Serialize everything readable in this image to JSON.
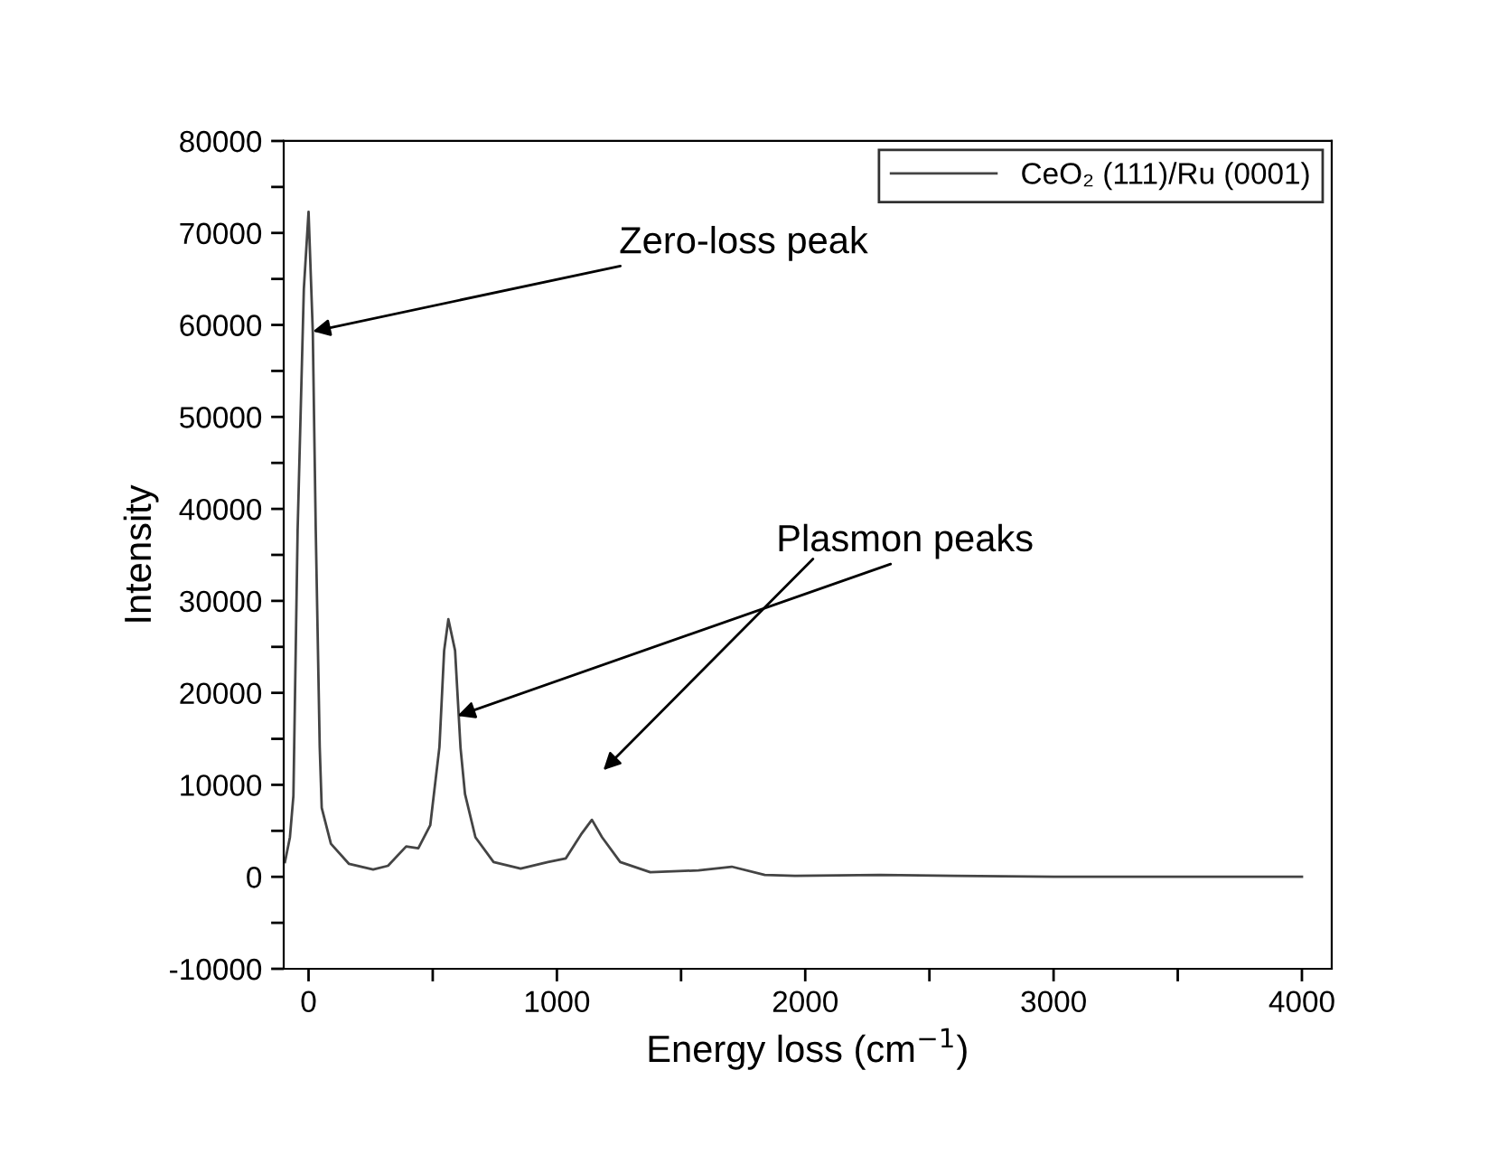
{
  "chart_data": {
    "type": "line",
    "xlabel": "Energy loss (cm$^{−1}$)",
    "ylabel": "Intensity",
    "series": [
      {
        "name": "CeO₂ (111)/Ru (0001)",
        "color": "#444444",
        "x": [
          -95,
          -75,
          -61,
          -44,
          -19,
          0,
          17,
          29,
          45,
          53,
          90,
          163,
          260,
          320,
          393,
          442,
          490,
          527,
          546,
          563,
          590,
          612,
          630,
          672,
          745,
          854,
          964,
          1036,
          1097,
          1141,
          1182,
          1255,
          1376,
          1570,
          1704,
          1837,
          1959,
          2300,
          2600,
          3000,
          4000
        ],
        "values": [
          1600,
          4300,
          8800,
          37700,
          63900,
          72300,
          59300,
          37700,
          14100,
          7500,
          3600,
          1400,
          800,
          1200,
          3300,
          3100,
          5600,
          14100,
          24600,
          28000,
          24600,
          14000,
          9000,
          4300,
          1600,
          900,
          1600,
          2000,
          4600,
          6200,
          4300,
          1600,
          500,
          700,
          1100,
          200,
          100,
          200,
          100,
          0,
          0
        ]
      }
    ],
    "xlim": [
      -100,
      4120
    ],
    "ylim": [
      -10000,
      80000
    ],
    "xticks": [
      0,
      {
        "value": 500,
        "label": null
      },
      1000,
      {
        "value": 1500,
        "label": null
      },
      2000,
      {
        "value": 2500,
        "label": null
      },
      3000,
      {
        "value": 3500,
        "label": null
      },
      4000
    ],
    "yticks": [
      -10000,
      {
        "value": -5000,
        "label": null
      },
      0,
      {
        "value": 5000,
        "label": null
      },
      10000,
      {
        "value": 15000,
        "label": null
      },
      20000,
      {
        "value": 25000,
        "label": null
      },
      30000,
      {
        "value": 35000,
        "label": null
      },
      40000,
      {
        "value": 45000,
        "label": null
      },
      50000,
      {
        "value": 55000,
        "label": null
      },
      60000,
      {
        "value": 65000,
        "label": null
      },
      70000,
      {
        "value": 75000,
        "label": null
      },
      80000
    ],
    "annotations": [
      {
        "text": "Zero-loss peak",
        "x": 17,
        "y": 59300
      },
      {
        "text": "Plasmon peaks",
        "x": 600,
        "y": 17500
      }
    ],
    "legend": "top right",
    "grid": false,
    "marker": "none",
    "line_style": "solid"
  }
}
